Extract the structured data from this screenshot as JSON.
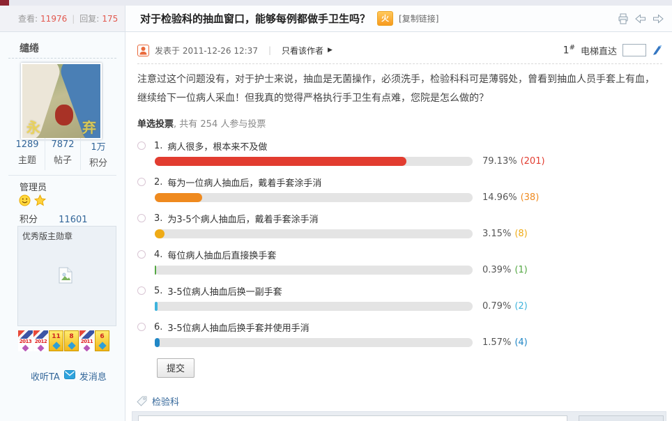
{
  "header": {
    "views_label": "查看:",
    "views": "11976",
    "divider": "|",
    "replies_label": "回复:",
    "replies": "175",
    "title": "对于检验科的抽血窗口，能够每例都做手卫生吗？",
    "hot_badge": "火",
    "copy_link": "[复制链接]"
  },
  "sidebar": {
    "username": "缱绻",
    "avatar_watermark_left": "永",
    "avatar_watermark_right": "弃",
    "stats": [
      {
        "value": "1289",
        "label": "主题"
      },
      {
        "value": "7872",
        "label": "帖子"
      },
      {
        "value": "1万",
        "label": "积分"
      }
    ],
    "role": "管理员",
    "score_label": "积分",
    "score_value": "11601",
    "medal_box_title": "优秀版主勋章",
    "medals": [
      "2013",
      "2012",
      "11",
      "8",
      "2011",
      "6"
    ],
    "follow_label": "收听TA",
    "message_label": "发消息"
  },
  "post": {
    "posted_label": "发表于 2011-12-26 12:37",
    "divider": "|",
    "view_author_label": "只看该作者",
    "view_author_arrow": "▶",
    "floor": "1",
    "floor_hash": "#",
    "elevator_label": "电梯直达",
    "jump_input_value": "",
    "body": "注意过这个问题没有，对于护士来说，抽血是无菌操作，必须洗手，检验科科可是薄弱处，曾看到抽血人员手套上有血，继续给下一位病人采血！但我真的觉得严格执行手卫生有点难，您院是怎么做的？"
  },
  "poll": {
    "note_label": "单选投票",
    "note_rest": ", 共有 254 人参与投票",
    "participants": "254",
    "options": [
      {
        "num": "1.",
        "label": "病人很多，根本来不及做",
        "percent": "79.13%",
        "count": "(201)",
        "value": 79.13,
        "color": "#e23c30"
      },
      {
        "num": "2.",
        "label": "每为一位病人抽血后，戴着手套涂手消",
        "percent": "14.96%",
        "count": "(38)",
        "value": 14.96,
        "color": "#ef8a1f"
      },
      {
        "num": "3.",
        "label": "为3-5个病人抽血后，戴着手套涂手消",
        "percent": "3.15%",
        "count": "(8)",
        "value": 3.15,
        "color": "#efab16"
      },
      {
        "num": "4.",
        "label": "每位病人抽血后直接换手套",
        "percent": "0.39%",
        "count": "(1)",
        "value": 0.39,
        "color": "#55a844"
      },
      {
        "num": "5.",
        "label": "3-5位病人抽血后换一副手套",
        "percent": "0.79%",
        "count": "(2)",
        "value": 0.79,
        "color": "#3eb3dc"
      },
      {
        "num": "6.",
        "label": "3-5位病人抽血后换手套并使用手消",
        "percent": "1.57%",
        "count": "(4)",
        "value": 1.57,
        "color": "#2187c6"
      }
    ],
    "submit_label": "提交"
  },
  "tags": {
    "items": [
      "检验科"
    ]
  },
  "quick_reply": {
    "input_value": ""
  }
}
